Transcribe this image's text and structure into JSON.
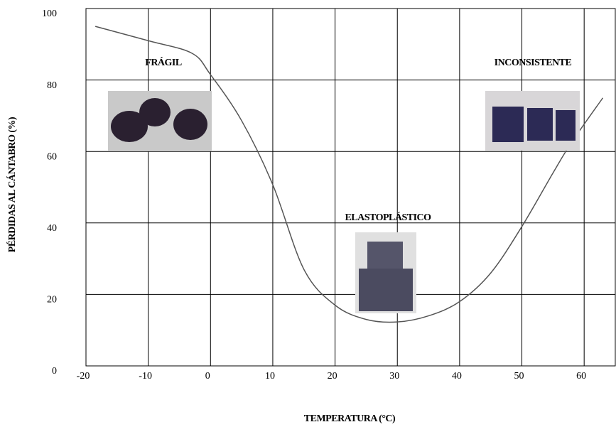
{
  "chart_data": {
    "type": "line",
    "x_label": "TEMPERATURA (°C)",
    "y_label": "PÉRDIDAS AL CÁNTABRO (%)",
    "annotations": [
      "FRÁGIL",
      "ELASTOPLÁSTICO",
      "INCONSISTENTE"
    ],
    "x": [
      -18.5,
      -10,
      -3,
      0,
      5,
      10,
      15,
      20,
      25,
      30,
      35,
      40,
      45,
      50,
      55,
      58,
      63
    ],
    "series": [
      {
        "color": "#555555",
        "values": [
          95,
          91,
          87.5,
          81.5,
          68.6,
          50.7,
          27,
          17,
          13,
          12.3,
          14,
          18,
          26,
          39,
          54,
          62.6,
          75
        ]
      }
    ],
    "xlim": [
      -20,
      65
    ],
    "xticks": [
      -20,
      -10,
      0,
      10,
      20,
      30,
      40,
      50,
      60
    ],
    "ylim": [
      0,
      100
    ],
    "yticks": [
      0,
      20,
      40,
      60,
      80,
      100
    ],
    "grid": true
  }
}
